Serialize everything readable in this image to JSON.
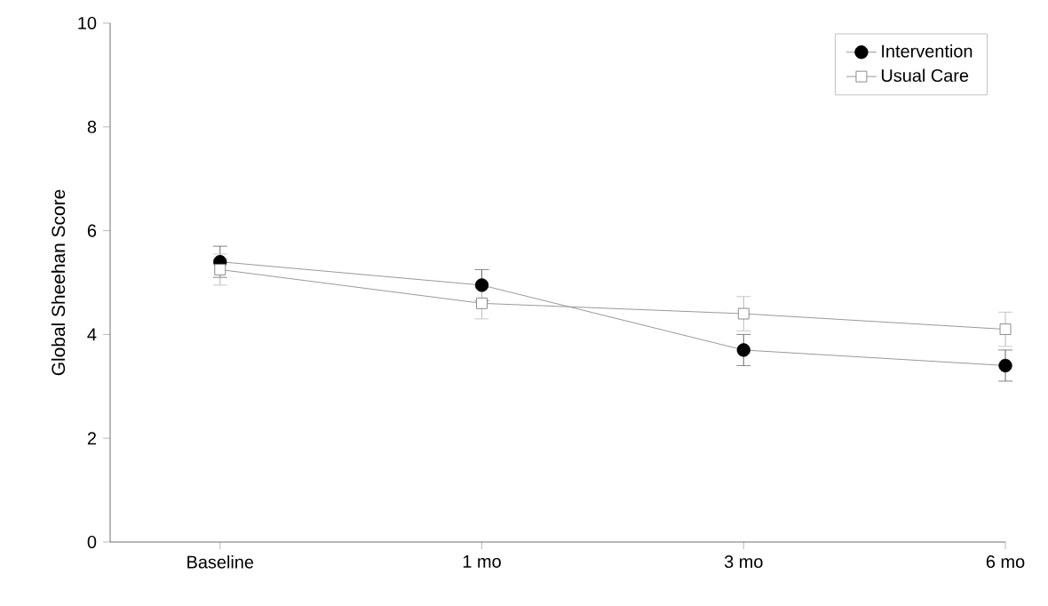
{
  "chart_data": {
    "type": "line",
    "ylabel": "Global Sheehan Score",
    "categories": [
      "Baseline",
      "1 mo",
      "3 mo",
      "6 mo"
    ],
    "ylim": [
      0,
      10
    ],
    "yticks": [
      0,
      2,
      4,
      6,
      8,
      10
    ],
    "grid": false,
    "legend": "top right",
    "series": [
      {
        "name": "Intervention",
        "color": "#000000",
        "marker": "circle",
        "values": [
          5.4,
          4.95,
          3.7,
          3.4
        ],
        "errors": [
          0.3,
          0.3,
          0.3,
          0.3
        ]
      },
      {
        "name": "Usual Care",
        "color": "#8c8c8c",
        "marker": "square",
        "values": [
          5.25,
          4.6,
          4.4,
          4.1
        ],
        "errors": [
          0.3,
          0.3,
          0.33,
          0.33
        ]
      }
    ]
  }
}
